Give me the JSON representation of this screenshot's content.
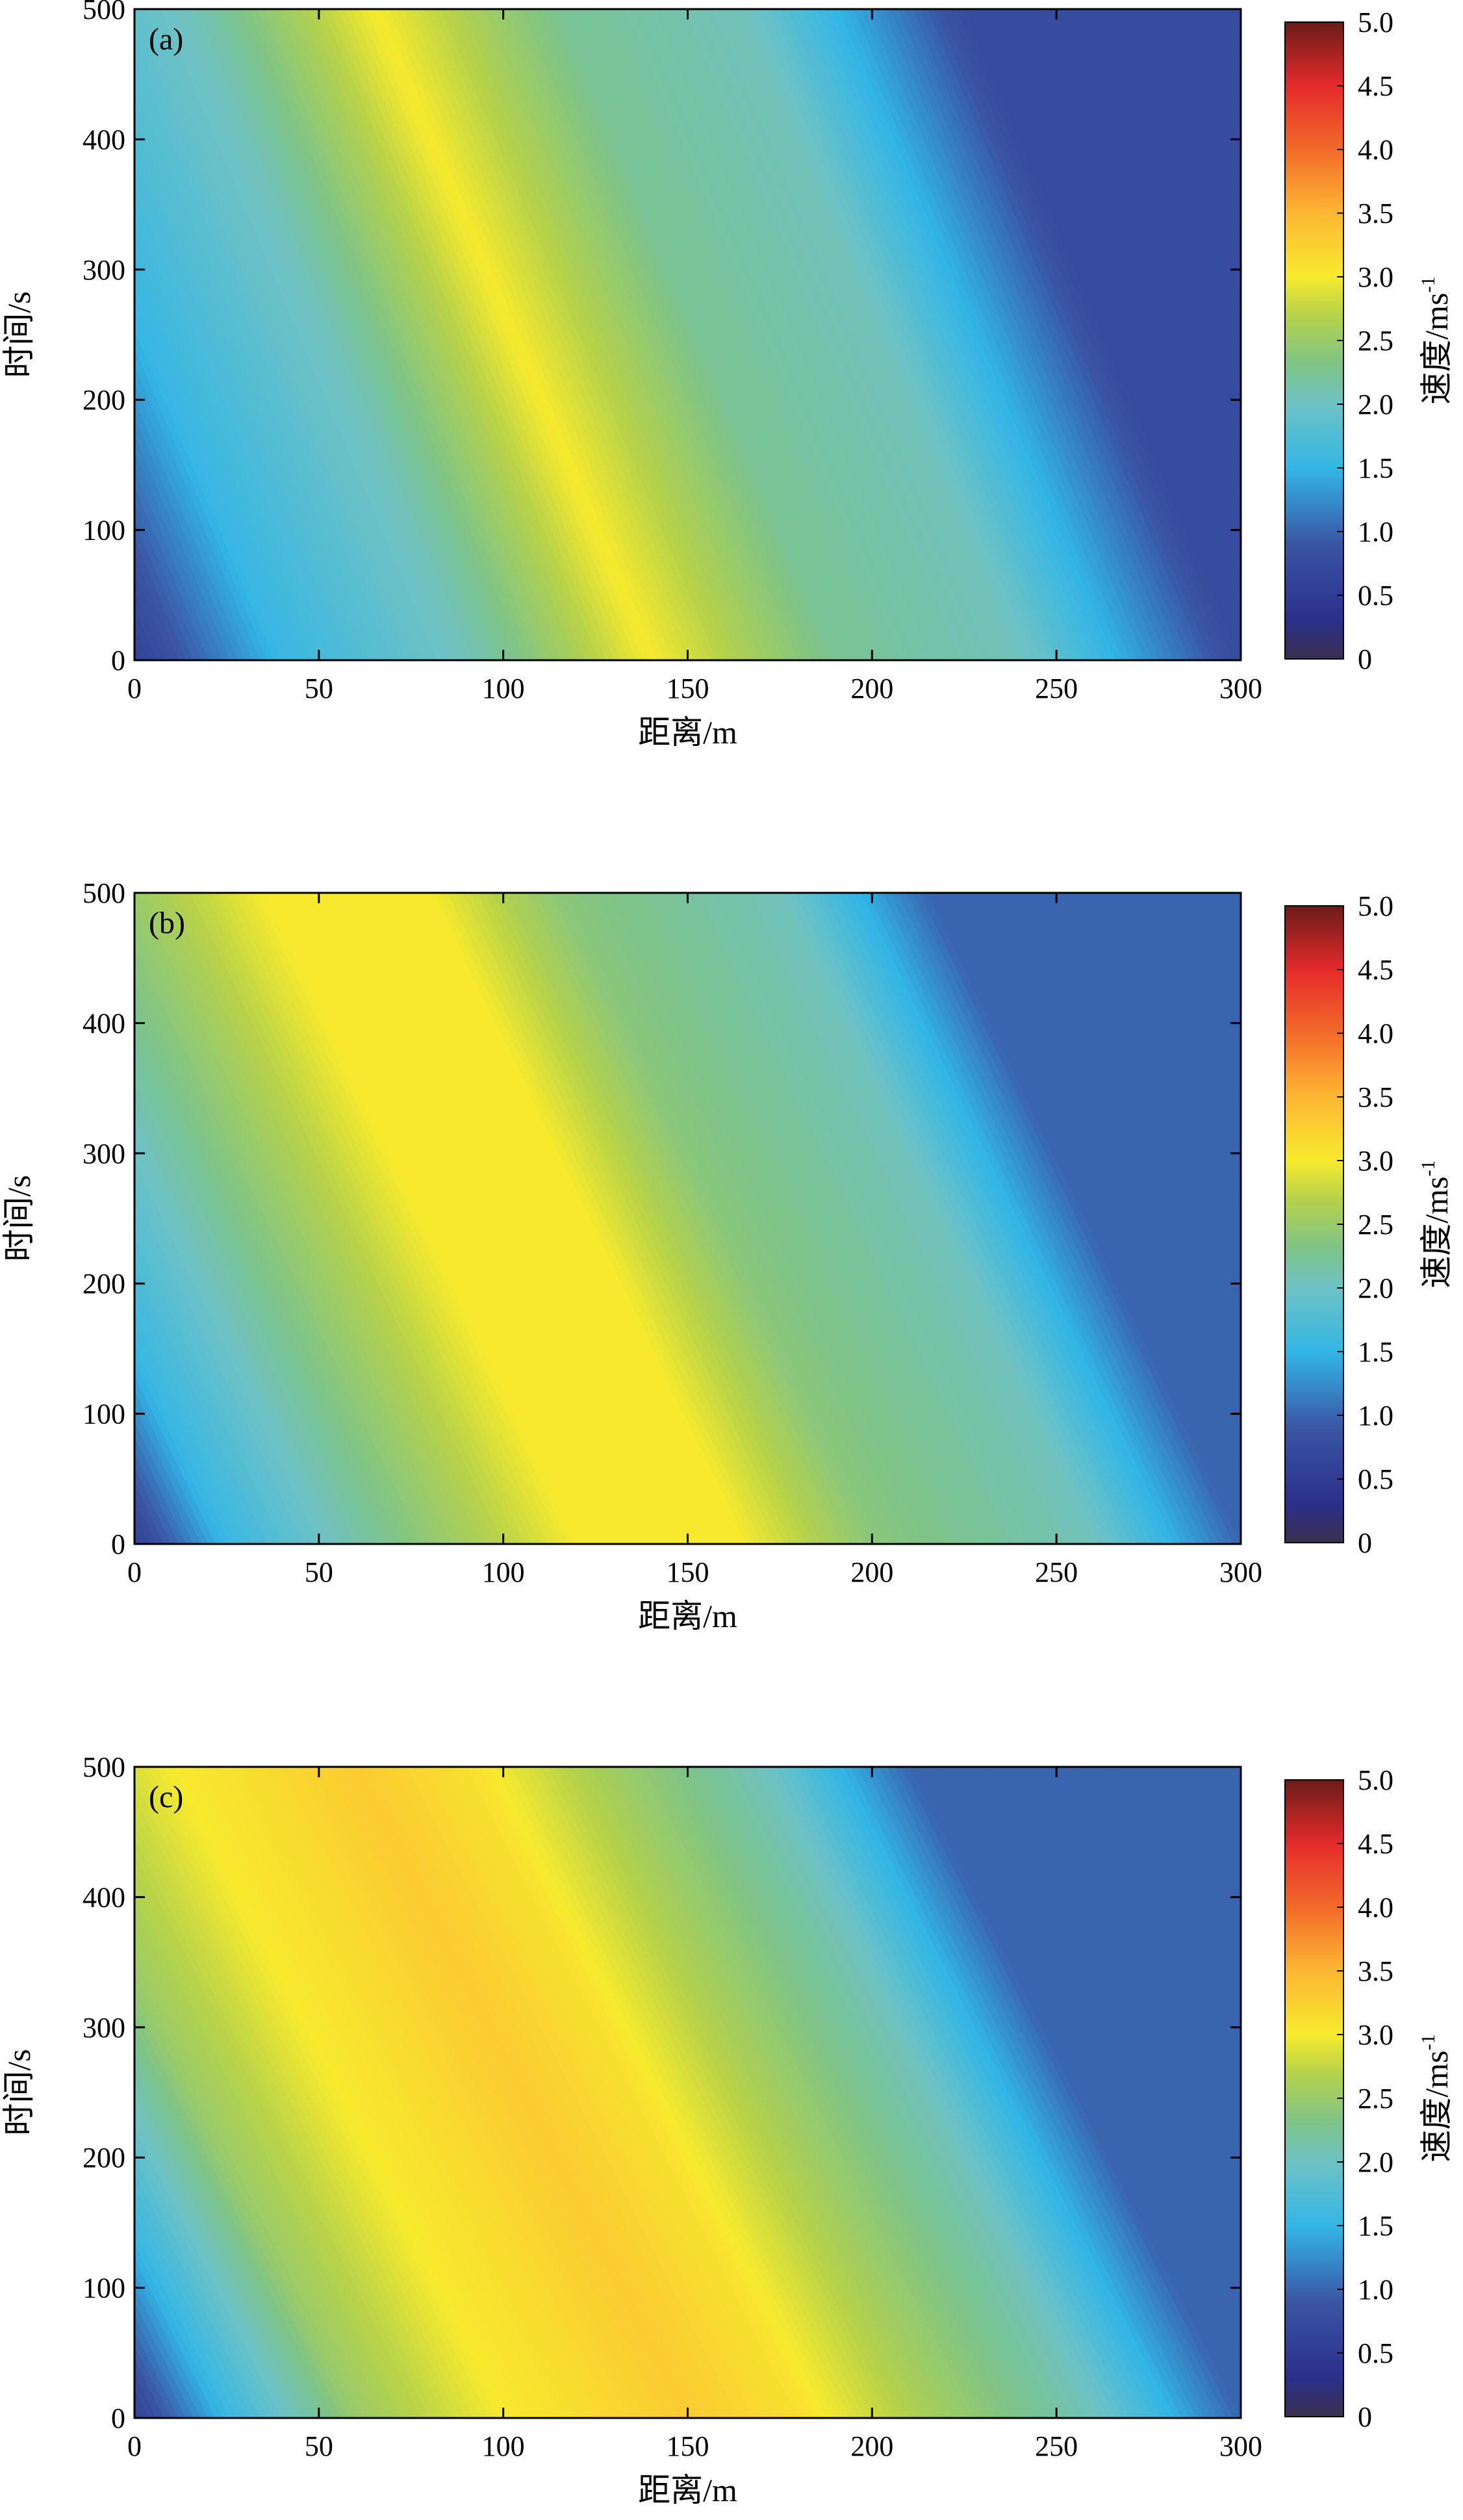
{
  "colormap": {
    "name": "parula-jet",
    "stops": [
      {
        "v": 0.0,
        "color": "#3b2f4f"
      },
      {
        "v": 0.3,
        "color": "#2b2f8a"
      },
      {
        "v": 0.9,
        "color": "#3a55a4"
      },
      {
        "v": 1.5,
        "color": "#33b6e6"
      },
      {
        "v": 2.0,
        "color": "#6ec2c4"
      },
      {
        "v": 2.3,
        "color": "#7dc38a"
      },
      {
        "v": 2.7,
        "color": "#b6d24a"
      },
      {
        "v": 3.0,
        "color": "#f7ea2e"
      },
      {
        "v": 3.5,
        "color": "#fcb733"
      },
      {
        "v": 4.0,
        "color": "#f26a2a"
      },
      {
        "v": 4.5,
        "color": "#e52b2b"
      },
      {
        "v": 5.0,
        "color": "#6a1c18"
      }
    ]
  },
  "chart_data": [
    {
      "type": "heatmap",
      "panel_label": "(a)",
      "xlabel": "距离/m",
      "ylabel": "时间/s",
      "xlim": [
        0,
        300
      ],
      "ylim": [
        0,
        500
      ],
      "xticks": [
        "0",
        "50",
        "100",
        "150",
        "200",
        "250",
        "300"
      ],
      "yticks": [
        "0",
        "100",
        "200",
        "300",
        "400",
        "500"
      ],
      "colorbar": {
        "label": "速度/ms",
        "label_superscript": "-1",
        "range": [
          0,
          5.0
        ],
        "ticks": [
          "0",
          "0.5",
          "1.0",
          "1.5",
          "2.0",
          "2.5",
          "3.0",
          "3.5",
          "4.0",
          "4.5",
          "5.0"
        ]
      },
      "field": {
        "profile_x": [
          0,
          40,
          90,
          140,
          190,
          240,
          300
        ],
        "profile_v": [
          0.6,
          1.55,
          2.05,
          3.0,
          2.25,
          2.05,
          0.75
        ],
        "drift_per_500s": -75
      }
    },
    {
      "type": "heatmap",
      "panel_label": "(b)",
      "xlabel": "距离/m",
      "ylabel": "时间/s",
      "xlim": [
        0,
        300
      ],
      "ylim": [
        0,
        500
      ],
      "xticks": [
        "0",
        "50",
        "100",
        "150",
        "200",
        "250",
        "300"
      ],
      "yticks": [
        "0",
        "100",
        "200",
        "300",
        "400",
        "500"
      ],
      "colorbar": {
        "label": "速度/ms",
        "label_superscript": "-1",
        "range": [
          0,
          5.0
        ],
        "ticks": [
          "0",
          "0.5",
          "1.0",
          "1.5",
          "2.0",
          "2.5",
          "3.0",
          "3.5",
          "4.0",
          "4.5",
          "5.0"
        ]
      },
      "field": {
        "profile_x": [
          0,
          25,
          70,
          120,
          165,
          200,
          260,
          300
        ],
        "profile_v": [
          0.6,
          1.55,
          2.3,
          3.0,
          3.0,
          2.4,
          2.05,
          1.0
        ],
        "drift_per_500s": -85
      }
    },
    {
      "type": "heatmap",
      "panel_label": "(c)",
      "xlabel": "距离/m",
      "ylabel": "时间/s",
      "xlim": [
        0,
        300
      ],
      "ylim": [
        0,
        500
      ],
      "xticks": [
        "0",
        "50",
        "100",
        "150",
        "200",
        "250",
        "300"
      ],
      "yticks": [
        "0",
        "100",
        "200",
        "300",
        "400",
        "500"
      ],
      "colorbar": {
        "label": "速度/ms",
        "label_superscript": "-1",
        "range": [
          0,
          5.0
        ],
        "ticks": [
          "0",
          "0.5",
          "1.0",
          "1.5",
          "2.0",
          "2.5",
          "3.0",
          "3.5",
          "4.0",
          "4.5",
          "5.0"
        ]
      },
      "field": {
        "profile_x": [
          0,
          25,
          60,
          100,
          150,
          180,
          215,
          260,
          300
        ],
        "profile_v": [
          0.6,
          1.55,
          2.5,
          3.0,
          3.3,
          3.1,
          2.6,
          2.05,
          1.0
        ],
        "drift_per_500s": -90
      }
    }
  ]
}
